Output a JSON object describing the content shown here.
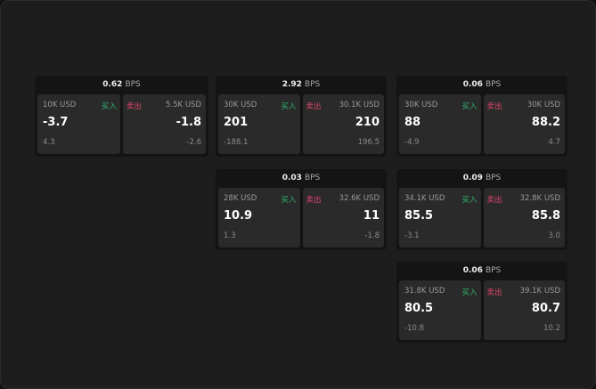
{
  "panels": [
    {
      "spread": "0.62",
      "unit": "BPS",
      "buy": {
        "size": "10K USD",
        "label": "买入",
        "price": "-3.7",
        "change": "4.3"
      },
      "sell": {
        "size": "5.5K USD",
        "label": "卖出",
        "price": "-1.8",
        "change": "-2.6"
      }
    },
    {
      "spread": "2.92",
      "unit": "BPS",
      "buy": {
        "size": "30K USD",
        "label": "买入",
        "price": "201",
        "change": "-188.1"
      },
      "sell": {
        "size": "30.1K USD",
        "label": "卖出",
        "price": "210",
        "change": "196.5"
      }
    },
    {
      "spread": "0.06",
      "unit": "BPS",
      "buy": {
        "size": "30K USD",
        "label": "买入",
        "price": "88",
        "change": "-4.9"
      },
      "sell": {
        "size": "30K USD",
        "label": "卖出",
        "price": "88.2",
        "change": "4.7"
      }
    },
    {
      "spread": "0.03",
      "unit": "BPS",
      "buy": {
        "size": "28K USD",
        "label": "买入",
        "price": "10.9",
        "change": "1.3"
      },
      "sell": {
        "size": "32.6K USD",
        "label": "卖出",
        "price": "11",
        "change": "-1.8"
      }
    },
    {
      "spread": "0.09",
      "unit": "BPS",
      "buy": {
        "size": "34.1K USD",
        "label": "买入",
        "price": "85.5",
        "change": "-3.1"
      },
      "sell": {
        "size": "32.8K USD",
        "label": "卖出",
        "price": "85.8",
        "change": "3.0"
      }
    },
    {
      "spread": "0.06",
      "unit": "BPS",
      "buy": {
        "size": "31.8K USD",
        "label": "买入",
        "price": "80.5",
        "change": "-10.8"
      },
      "sell": {
        "size": "39.1K USD",
        "label": "卖出",
        "price": "80.7",
        "change": "10.2"
      }
    }
  ],
  "colors": {
    "buy": "#2fb36b",
    "sell": "#e0466e",
    "background": "#1d1d1d",
    "panel": "#141414",
    "card": "#2a2a2a"
  }
}
